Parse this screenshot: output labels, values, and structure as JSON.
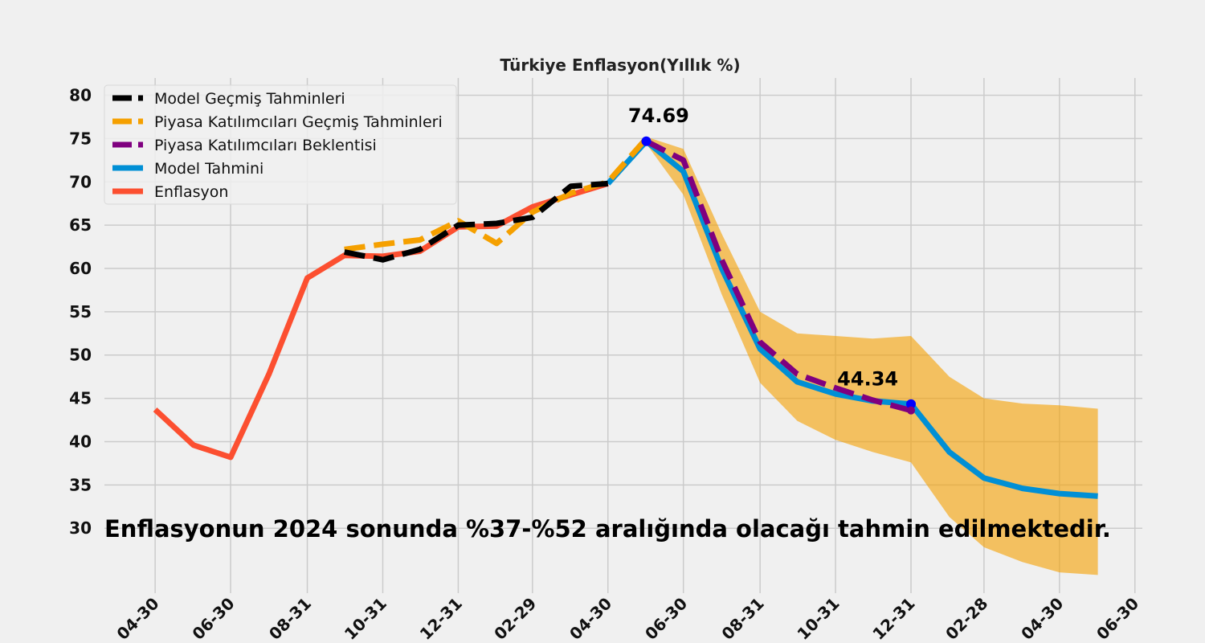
{
  "chart_data": {
    "type": "line",
    "title": "Türkiye Enflasyon(Yıllık %)",
    "xlabel": "",
    "ylabel": "",
    "x": [
      "2023-04-30",
      "2023-05-31",
      "2023-06-30",
      "2023-07-31",
      "2023-08-31",
      "2023-09-30",
      "2023-10-31",
      "2023-11-30",
      "2023-12-31",
      "2024-01-31",
      "2024-02-29",
      "2024-03-31",
      "2024-04-30",
      "2024-05-31",
      "2024-06-30",
      "2024-07-31",
      "2024-08-31",
      "2024-09-30",
      "2024-10-31",
      "2024-11-30",
      "2024-12-31",
      "2025-01-31",
      "2025-02-28",
      "2025-03-31",
      "2025-04-30",
      "2025-05-31"
    ],
    "x_ticks": [
      {
        "x": "2023-04-30",
        "label": "04-30"
      },
      {
        "x": "2023-06-30",
        "label": "06-30"
      },
      {
        "x": "2023-08-31",
        "label": "08-31"
      },
      {
        "x": "2023-10-31",
        "label": "10-31"
      },
      {
        "x": "2023-12-31",
        "label": "12-31"
      },
      {
        "x": "2024-02-29",
        "label": "02-29"
      },
      {
        "x": "2024-04-30",
        "label": "04-30"
      },
      {
        "x": "2024-06-30",
        "label": "06-30"
      },
      {
        "x": "2024-08-31",
        "label": "08-31"
      },
      {
        "x": "2024-10-31",
        "label": "10-31"
      },
      {
        "x": "2024-12-31",
        "label": "12-31"
      },
      {
        "x": "2025-02-28",
        "label": "02-28"
      },
      {
        "x": "2025-04-30",
        "label": "04-30"
      },
      {
        "x": "2025-06-30",
        "label": "06-30"
      }
    ],
    "xlim": [
      "2023-03-20",
      "2025-07-06"
    ],
    "ylim": [
      22.5,
      82
    ],
    "y_ticks": [
      30,
      35,
      40,
      45,
      50,
      55,
      60,
      65,
      70,
      75,
      80
    ],
    "grid": true,
    "legend_position": "top-left",
    "series": [
      {
        "name": "Model Geçmiş Tahminleri",
        "style": "dashed",
        "color": "#000000",
        "points": [
          [
            "2023-09-30",
            61.9
          ],
          [
            "2023-10-31",
            61.0
          ],
          [
            "2023-11-30",
            62.2
          ],
          [
            "2023-12-31",
            65.0
          ],
          [
            "2024-01-31",
            65.2
          ],
          [
            "2024-02-29",
            65.9
          ],
          [
            "2024-03-31",
            69.5
          ],
          [
            "2024-04-30",
            69.8
          ]
        ]
      },
      {
        "name": "Piyasa Katılımcıları Geçmiş Tahminleri",
        "style": "dashed",
        "color": "#f5a000",
        "points": [
          [
            "2023-09-30",
            62.2
          ],
          [
            "2023-10-31",
            62.8
          ],
          [
            "2023-11-30",
            63.3
          ],
          [
            "2023-12-31",
            65.5
          ],
          [
            "2024-01-31",
            62.9
          ],
          [
            "2024-02-29",
            66.5
          ],
          [
            "2024-03-31",
            68.7
          ],
          [
            "2024-04-30",
            70.0
          ],
          [
            "2024-05-31",
            75.0
          ]
        ]
      },
      {
        "name": "Piyasa Katılımcıları Beklentisi",
        "style": "dashed",
        "color": "#7f007f",
        "points": [
          [
            "2024-05-31",
            74.69
          ],
          [
            "2024-06-30",
            72.5
          ],
          [
            "2024-07-31",
            61.0
          ],
          [
            "2024-08-31",
            51.5
          ],
          [
            "2024-09-30",
            47.8
          ],
          [
            "2024-10-31",
            46.2
          ],
          [
            "2024-11-30",
            44.8
          ],
          [
            "2024-12-31",
            43.6
          ]
        ]
      },
      {
        "name": "Model Tahmini",
        "style": "solid",
        "color": "#008fd5",
        "points": [
          [
            "2024-04-30",
            69.8
          ],
          [
            "2024-05-31",
            74.69
          ],
          [
            "2024-06-30",
            71.2
          ],
          [
            "2024-07-31",
            60.0
          ],
          [
            "2024-08-31",
            50.7
          ],
          [
            "2024-09-30",
            46.9
          ],
          [
            "2024-10-31",
            45.5
          ],
          [
            "2024-11-30",
            44.7
          ],
          [
            "2024-12-31",
            44.34
          ],
          [
            "2025-01-31",
            38.8
          ],
          [
            "2025-02-28",
            35.8
          ],
          [
            "2025-03-31",
            34.6
          ],
          [
            "2025-04-30",
            34.0
          ],
          [
            "2025-05-31",
            33.7
          ]
        ]
      },
      {
        "name": "Enflasyon",
        "style": "solid",
        "color": "#fc4f30",
        "points": [
          [
            "2023-04-30",
            43.7
          ],
          [
            "2023-05-31",
            39.6
          ],
          [
            "2023-06-30",
            38.2
          ],
          [
            "2023-07-31",
            47.8
          ],
          [
            "2023-08-31",
            58.9
          ],
          [
            "2023-09-30",
            61.5
          ],
          [
            "2023-10-31",
            61.4
          ],
          [
            "2023-11-30",
            62.0
          ],
          [
            "2023-12-31",
            64.8
          ],
          [
            "2024-01-31",
            64.9
          ],
          [
            "2024-02-29",
            67.1
          ],
          [
            "2024-03-31",
            68.5
          ],
          [
            "2024-04-30",
            69.8
          ]
        ]
      }
    ],
    "band": {
      "color": "#f5a000",
      "points": [
        [
          "2024-05-31",
          75.2,
          74.4
        ],
        [
          "2024-06-30",
          73.8,
          68.5
        ],
        [
          "2024-07-31",
          64.0,
          57.0
        ],
        [
          "2024-08-31",
          55.0,
          46.8
        ],
        [
          "2024-09-30",
          52.5,
          42.4
        ],
        [
          "2024-10-31",
          52.2,
          40.2
        ],
        [
          "2024-11-30",
          51.9,
          38.8
        ],
        [
          "2024-12-31",
          52.2,
          37.6
        ],
        [
          "2025-01-31",
          47.5,
          31.3
        ],
        [
          "2025-02-28",
          45.0,
          27.8
        ],
        [
          "2025-03-31",
          44.4,
          26.1
        ],
        [
          "2025-04-30",
          44.2,
          24.9
        ],
        [
          "2025-05-31",
          43.8,
          24.6
        ]
      ]
    },
    "markers": [
      {
        "x": "2024-05-31",
        "y": 74.69,
        "color": "#0000ff"
      },
      {
        "x": "2024-12-31",
        "y": 44.34,
        "color": "#0000ff"
      },
      {
        "x": "2024-12-31",
        "y": 43.6,
        "color": "#7f007f"
      }
    ],
    "annotations": [
      {
        "text": "74.69",
        "x": "2024-06-10",
        "y": 76.9
      },
      {
        "text": "44.34",
        "x": "2024-11-26",
        "y": 46.5
      },
      {
        "text": "Enflasyonun 2024 sonunda %37-%52 aralığında olacağı tahmin edilmektedir.",
        "x": "2023-03-20",
        "y": 29.0
      }
    ]
  }
}
